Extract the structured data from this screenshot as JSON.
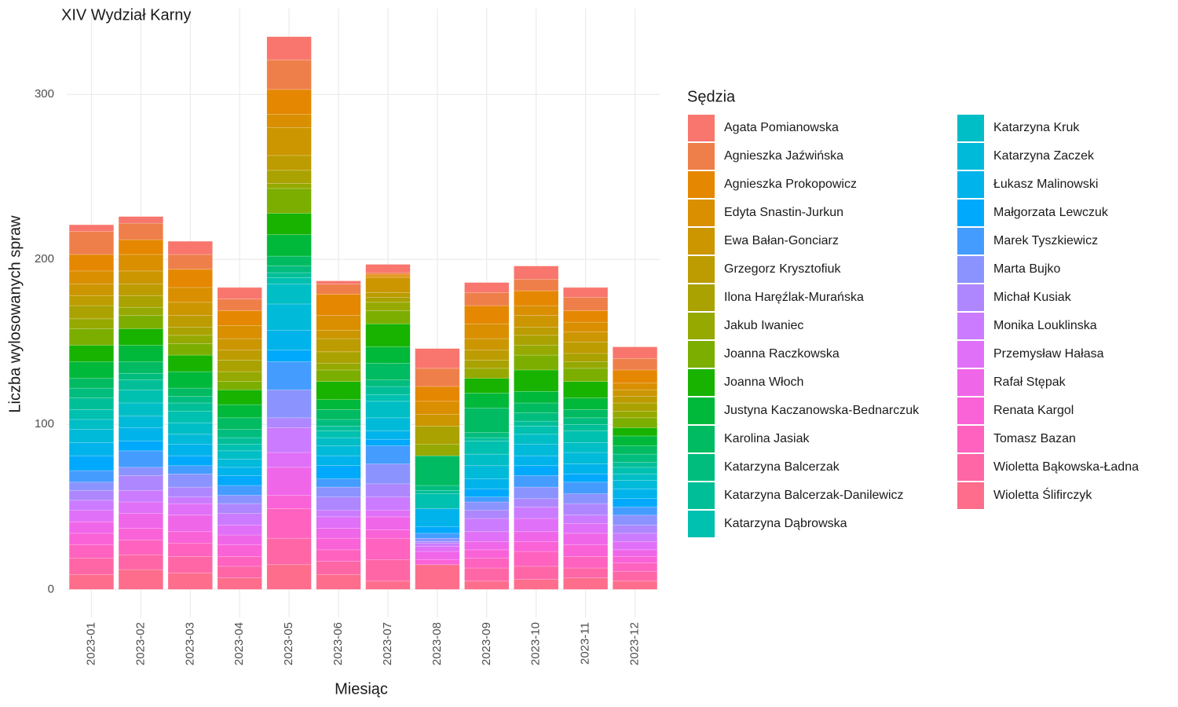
{
  "chart_data": {
    "type": "stacked_bar",
    "title": "XIV Wydział Karny",
    "x_label": "Miesiąc",
    "y_label": "Liczba wylosowanych spraw",
    "legend_title": "Sędzia",
    "categories": [
      "2023-01",
      "2023-02",
      "2023-03",
      "2023-04",
      "2023-05",
      "2023-06",
      "2023-07",
      "2023-08",
      "2023-09",
      "2023-10",
      "2023-11",
      "2023-12"
    ],
    "ylim": [
      -17,
      352
    ],
    "yticks": [
      0,
      100,
      200,
      300
    ],
    "grid": true,
    "series": [
      {
        "name": "Agata Pomianowska",
        "color": "#F8766D",
        "values": [
          4,
          4,
          8,
          7,
          14,
          2,
          5,
          12,
          6,
          8,
          6,
          7
        ]
      },
      {
        "name": "Agnieszka Jaźwińska",
        "color": "#EF7F4A",
        "values": [
          14,
          10,
          9,
          7,
          18,
          6,
          1,
          11,
          8,
          7,
          8,
          7
        ]
      },
      {
        "name": "Agnieszka Prokopowicz",
        "color": "#E58700",
        "values": [
          10,
          9,
          11,
          9,
          15,
          13,
          1,
          9,
          11,
          9,
          7,
          8
        ]
      },
      {
        "name": "Edyta Snastin-Jurkun",
        "color": "#D98F00",
        "values": [
          8,
          10,
          9,
          8,
          8,
          9,
          1,
          8,
          9,
          6,
          6,
          4
        ]
      },
      {
        "name": "Ewa Bałan-Gonciarz",
        "color": "#CB9600",
        "values": [
          7,
          8,
          8,
          7,
          17,
          5,
          9,
          7,
          7,
          7,
          6,
          4
        ]
      },
      {
        "name": "Grzegorz Krysztofiuk",
        "color": "#BC9C00",
        "values": [
          6,
          7,
          7,
          6,
          9,
          8,
          3,
          0,
          6,
          5,
          7,
          4
        ]
      },
      {
        "name": "Ilona Haręźlak-Murańska",
        "color": "#AAA200",
        "values": [
          8,
          7,
          5,
          7,
          8,
          7,
          3,
          11,
          5,
          6,
          5,
          5
        ]
      },
      {
        "name": "Jakub Iwaniec",
        "color": "#95A900",
        "values": [
          6,
          5,
          5,
          6,
          3,
          4,
          5,
          7,
          6,
          6,
          4,
          4
        ]
      },
      {
        "name": "Joanna Raczkowska",
        "color": "#7CAE00",
        "values": [
          10,
          8,
          7,
          5,
          15,
          7,
          8,
          0,
          0,
          9,
          8,
          6
        ]
      },
      {
        "name": "Joanna Włoch",
        "color": "#17B300",
        "values": [
          10,
          10,
          10,
          9,
          13,
          11,
          14,
          0,
          9,
          13,
          10,
          5
        ]
      },
      {
        "name": "Justyna Kaczanowska-Bednarczuk",
        "color": "#00B83A",
        "values": [
          10,
          10,
          10,
          8,
          13,
          6,
          10,
          0,
          9,
          7,
          7,
          6
        ]
      },
      {
        "name": "Karolina Jasiak",
        "color": "#00BB61",
        "values": [
          6,
          7,
          5,
          7,
          6,
          6,
          10,
          18,
          15,
          6,
          5,
          5
        ]
      },
      {
        "name": "Katarzyna Balcerzak",
        "color": "#00BD7E",
        "values": [
          6,
          4,
          4,
          5,
          4,
          4,
          4,
          3,
          3,
          5,
          4,
          5
        ]
      },
      {
        "name": "Katarzyna Balcerzak-Danilewicz",
        "color": "#00BF98",
        "values": [
          7,
          6,
          5,
          4,
          3,
          3,
          5,
          2,
          2,
          3,
          4,
          3
        ]
      },
      {
        "name": "Katarzyna Dąbrowska",
        "color": "#00C0B0",
        "values": [
          6,
          8,
          7,
          4,
          4,
          4,
          4,
          9,
          8,
          5,
          7,
          4
        ]
      },
      {
        "name": "Katarzyna Kruk",
        "color": "#00BEC6",
        "values": [
          6,
          8,
          7,
          5,
          12,
          5,
          10,
          0,
          7,
          6,
          6,
          4
        ]
      },
      {
        "name": "Katarzyna Zaczek",
        "color": "#00BAD9",
        "values": [
          8,
          7,
          6,
          5,
          16,
          6,
          8,
          0,
          8,
          7,
          7,
          5
        ]
      },
      {
        "name": "Łukasz Malinowski",
        "color": "#00B3EA",
        "values": [
          8,
          8,
          7,
          5,
          12,
          6,
          5,
          11,
          6,
          6,
          6,
          6
        ]
      },
      {
        "name": "Małgorzata Lewczuk",
        "color": "#00A9FB",
        "values": [
          9,
          6,
          6,
          6,
          7,
          8,
          4,
          4,
          5,
          6,
          5,
          5
        ]
      },
      {
        "name": "Marek Tyszkiewicz",
        "color": "#449CFF",
        "values": [
          7,
          10,
          5,
          6,
          17,
          5,
          11,
          3,
          3,
          7,
          7,
          5
        ]
      },
      {
        "name": "Marta Bujko",
        "color": "#8B93FF",
        "values": [
          5,
          5,
          8,
          5,
          17,
          6,
          12,
          2,
          5,
          7,
          6,
          6
        ]
      },
      {
        "name": "Michał Kusiak",
        "color": "#AE87FF",
        "values": [
          6,
          9,
          6,
          6,
          6,
          8,
          8,
          1,
          5,
          5,
          7,
          5
        ]
      },
      {
        "name": "Monika Louklinska",
        "color": "#CB7BFF",
        "values": [
          6,
          7,
          4,
          7,
          15,
          4,
          8,
          2,
          8,
          7,
          5,
          5
        ]
      },
      {
        "name": "Przemysław Hałasa",
        "color": "#E070F7",
        "values": [
          7,
          7,
          7,
          6,
          9,
          7,
          4,
          3,
          6,
          8,
          6,
          5
        ]
      },
      {
        "name": "Rafał Stępak",
        "color": "#F066E9",
        "values": [
          7,
          9,
          10,
          6,
          17,
          6,
          8,
          5,
          5,
          6,
          7,
          4
        ]
      },
      {
        "name": "Renata Kargol",
        "color": "#FA62D7",
        "values": [
          7,
          7,
          7,
          7,
          8,
          7,
          5,
          3,
          5,
          6,
          7,
          4
        ]
      },
      {
        "name": "Tomasz Bazan",
        "color": "#FF62BF",
        "values": [
          8,
          9,
          8,
          6,
          18,
          7,
          13,
          0,
          6,
          9,
          7,
          5
        ]
      },
      {
        "name": "Wioletta Bąkowska-Ładna",
        "color": "#FF66A6",
        "values": [
          10,
          9,
          10,
          7,
          16,
          8,
          13,
          0,
          8,
          8,
          6,
          6
        ]
      },
      {
        "name": "Wioletta Ślifirczyk",
        "color": "#FE6D8B",
        "values": [
          9,
          12,
          10,
          7,
          15,
          9,
          5,
          15,
          5,
          6,
          7,
          5
        ]
      }
    ]
  }
}
